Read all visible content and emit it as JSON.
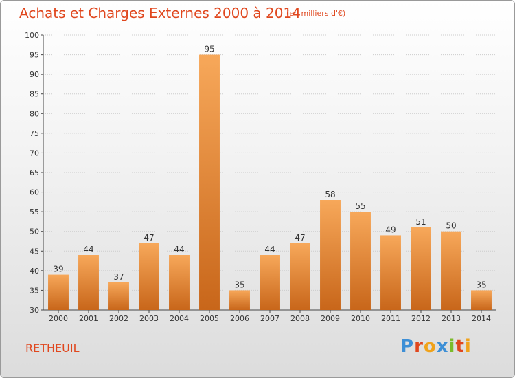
{
  "header": {
    "title": "Achats et Charges Externes 2000 à 2014",
    "subtitle": "(en milliers d'€)"
  },
  "footer": {
    "place": "RETHEUIL",
    "logo_text": "Proxiti"
  },
  "colors": {
    "title": "#e0471e",
    "bar_top": "#f7a85a",
    "bar_bottom": "#c8661a",
    "grid": "#cccccc",
    "axis": "#444444",
    "logo": [
      "#3d8fd6",
      "#e0471e",
      "#f0a21a",
      "#3d8fd6",
      "#7cbb2b",
      "#e0471e",
      "#f0a21a"
    ]
  },
  "chart_data": {
    "type": "bar",
    "title": "Achats et Charges Externes 2000 à 2014",
    "subtitle": "(en milliers d'€)",
    "categories": [
      "2000",
      "2001",
      "2002",
      "2003",
      "2004",
      "2005",
      "2006",
      "2007",
      "2008",
      "2009",
      "2010",
      "2011",
      "2012",
      "2013",
      "2014"
    ],
    "values": [
      39,
      44,
      37,
      47,
      44,
      95,
      35,
      44,
      47,
      58,
      55,
      49,
      51,
      50,
      35
    ],
    "ylim": [
      30,
      100
    ],
    "yticks": [
      30,
      35,
      40,
      45,
      50,
      55,
      60,
      65,
      70,
      75,
      80,
      85,
      90,
      95,
      100
    ],
    "xlabel": "",
    "ylabel": "",
    "grid": true,
    "data_labels": true
  }
}
